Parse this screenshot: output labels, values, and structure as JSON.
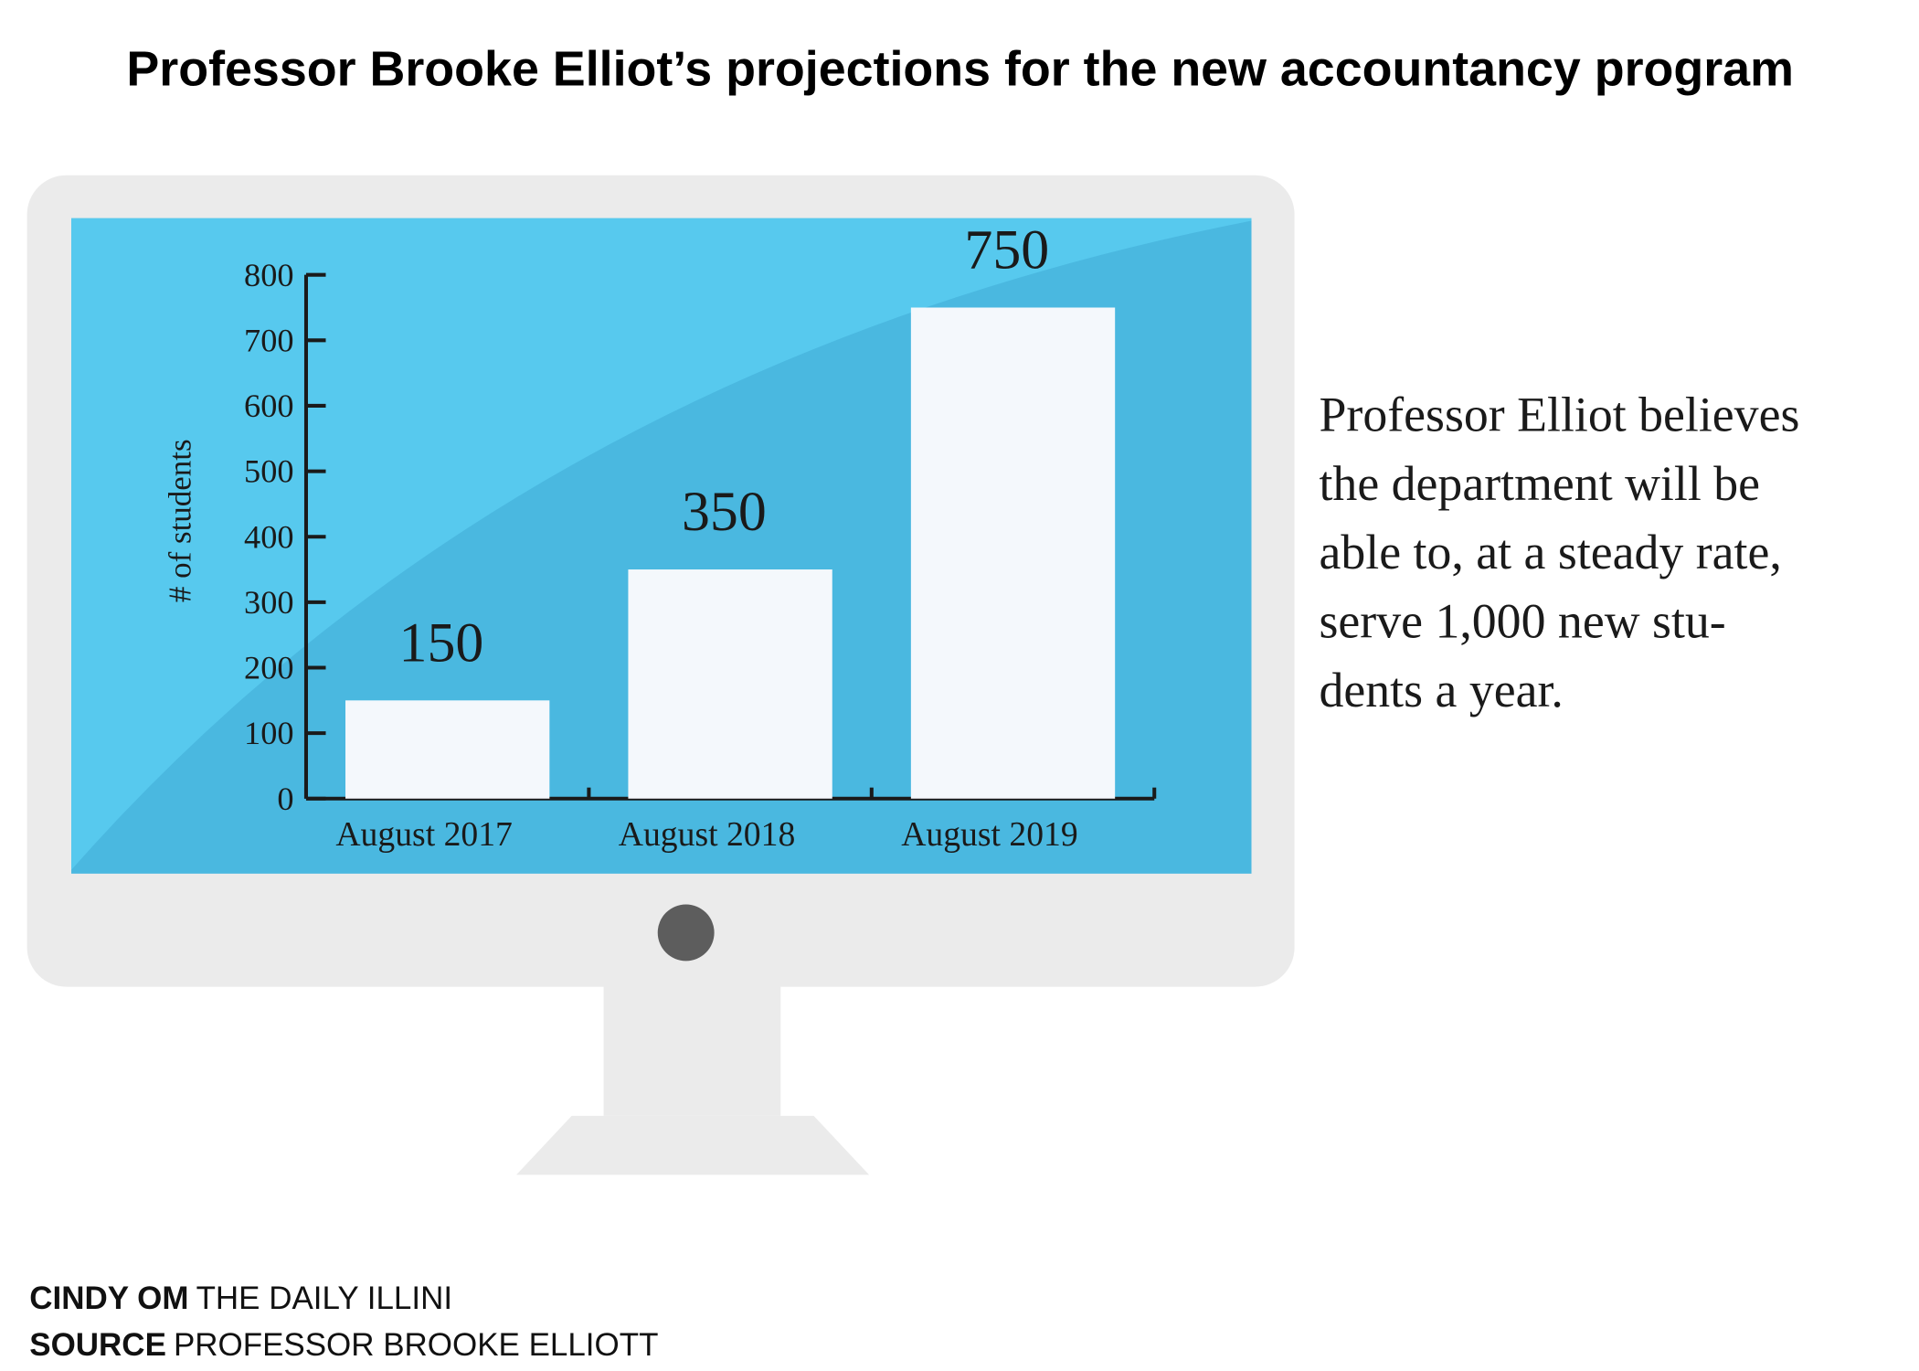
{
  "chart_data": {
    "type": "bar",
    "title": "Professor Brooke Elliot’s projections for the new accountancy program",
    "y_label": "# of students",
    "categories": [
      "August 2017",
      "August 2018",
      "August 2019"
    ],
    "values": [
      150,
      350,
      750
    ],
    "color": "#f4f8fc",
    "ylim": [
      0,
      800
    ],
    "yticks": [
      0,
      100,
      200,
      300,
      400,
      500,
      600,
      700,
      800
    ]
  },
  "note_lines": [
    "Professor Elliot believes",
    "the department will be",
    "able to, at a steady rate,",
    "serve 1,000 new stu-",
    "dents a year."
  ],
  "credits": [
    {
      "role": "CINDY OM",
      "text": "THE DAILY ILLINI"
    },
    {
      "role": "SOURCE",
      "text": "PROFESSOR BROOKE ELLIOTT"
    }
  ]
}
